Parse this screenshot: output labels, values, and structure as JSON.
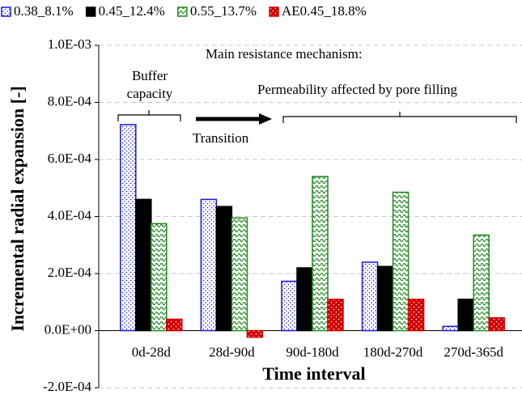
{
  "chart_data": {
    "type": "bar",
    "y_label": "Incremental radial expansion [-]",
    "x_label": "Time interval",
    "annotations": [
      "Main resistance mechanism:",
      "Buffer",
      "capacity",
      "Transition",
      "Permeability affected by pore filling"
    ],
    "categories": [
      "0d-28d",
      "28d-90d",
      "90d-180d",
      "180d-270d",
      "270d-365d"
    ],
    "series": [
      {
        "name": "0.38_8.1%",
        "color": "#1a1ad6",
        "values": [
          0.000722,
          0.00046,
          0.000173,
          0.00024,
          1.5e-05
        ]
      },
      {
        "name": "0.45_12.4%",
        "color": "#000000",
        "values": [
          0.00046,
          0.000435,
          0.00022,
          0.000225,
          0.00011
        ]
      },
      {
        "name": "0.55_13.7%",
        "color": "#1e8c1e",
        "values": [
          0.000375,
          0.000395,
          0.00054,
          0.000485,
          0.000335
        ]
      },
      {
        "name": "AE0.45_18.8%",
        "color": "#d40000",
        "values": [
          4e-05,
          -2.3e-05,
          0.00011,
          0.00011,
          4.5e-05
        ]
      }
    ],
    "ylim": [
      -0.0002,
      0.001
    ],
    "yticks": [
      {
        "value": -0.0002,
        "label": "-2.0E-04"
      },
      {
        "value": 0,
        "label": "0.0E+00"
      },
      {
        "value": 0.0002,
        "label": "2.0E-04"
      },
      {
        "value": 0.0004,
        "label": "4.0E-04"
      },
      {
        "value": 0.0006,
        "label": "6.0E-04"
      },
      {
        "value": 0.0008,
        "label": "8.0E-04"
      },
      {
        "value": 0.001,
        "label": "1.0E-03"
      }
    ],
    "grid": true,
    "legend": "top"
  }
}
